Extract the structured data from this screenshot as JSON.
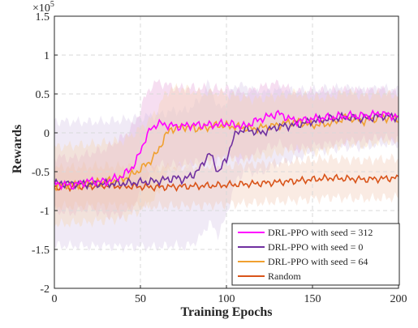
{
  "chart_data": {
    "type": "line",
    "title": "",
    "xlabel": "Training Epochs",
    "ylabel": "Rewards",
    "y_multiplier_label": "×10",
    "y_multiplier_exp": "5",
    "xlim": [
      0,
      200
    ],
    "ylim": [
      -2,
      1.5
    ],
    "xticks": [
      0,
      50,
      100,
      150,
      200
    ],
    "yticks": [
      -2,
      -1.5,
      -1,
      -0.5,
      0,
      0.5,
      1,
      1.5
    ],
    "xtick_labels": [
      "0",
      "50",
      "100",
      "150",
      "200"
    ],
    "ytick_labels": [
      "-2",
      "-1.5",
      "-1",
      "-0.5",
      "0",
      "0.5",
      "1",
      "1.5"
    ],
    "grid": true,
    "legend_position": "bottom-right",
    "series": [
      {
        "name": "DRL-PPO with seed = 312",
        "color": "#ff00ff",
        "band_color": "#e6a0d6",
        "anchors": [
          [
            0,
            -0.65
          ],
          [
            10,
            -0.68
          ],
          [
            20,
            -0.62
          ],
          [
            30,
            -0.63
          ],
          [
            40,
            -0.55
          ],
          [
            47,
            -0.4
          ],
          [
            52,
            -0.12
          ],
          [
            56,
            0.05
          ],
          [
            60,
            0.12
          ],
          [
            66,
            0.1
          ],
          [
            72,
            0.08
          ],
          [
            80,
            0.1
          ],
          [
            90,
            0.1
          ],
          [
            100,
            0.12
          ],
          [
            110,
            0.08
          ],
          [
            120,
            0.18
          ],
          [
            130,
            0.25
          ],
          [
            140,
            0.15
          ],
          [
            150,
            0.18
          ],
          [
            160,
            0.2
          ],
          [
            170,
            0.22
          ],
          [
            180,
            0.22
          ],
          [
            190,
            0.25
          ],
          [
            200,
            0.2
          ]
        ],
        "band": [
          [
            0,
            0.35
          ],
          [
            20,
            0.35
          ],
          [
            40,
            0.5
          ],
          [
            55,
            0.55
          ],
          [
            70,
            0.5
          ],
          [
            100,
            0.45
          ],
          [
            150,
            0.35
          ],
          [
            200,
            0.3
          ]
        ]
      },
      {
        "name": "DRL-PPO with seed = 0",
        "color": "#7030a0",
        "band_color": "#d3c3e6",
        "anchors": [
          [
            0,
            -0.65
          ],
          [
            20,
            -0.66
          ],
          [
            40,
            -0.65
          ],
          [
            60,
            -0.62
          ],
          [
            70,
            -0.58
          ],
          [
            75,
            -0.6
          ],
          [
            80,
            -0.55
          ],
          [
            85,
            -0.45
          ],
          [
            90,
            -0.25
          ],
          [
            95,
            -0.5
          ],
          [
            100,
            -0.35
          ],
          [
            103,
            -0.12
          ],
          [
            106,
            0.0
          ],
          [
            110,
            0.05
          ],
          [
            120,
            0.0
          ],
          [
            130,
            0.08
          ],
          [
            140,
            0.1
          ],
          [
            150,
            0.15
          ],
          [
            160,
            0.18
          ],
          [
            170,
            0.2
          ],
          [
            180,
            0.18
          ],
          [
            190,
            0.22
          ],
          [
            200,
            0.2
          ]
        ],
        "band": [
          [
            0,
            0.8
          ],
          [
            30,
            0.8
          ],
          [
            60,
            0.85
          ],
          [
            90,
            0.9
          ],
          [
            110,
            0.55
          ],
          [
            150,
            0.4
          ],
          [
            200,
            0.35
          ]
        ]
      },
      {
        "name": "DRL-PPO with seed = 64",
        "color": "#f0a030",
        "band_color": "#f6d4a8",
        "anchors": [
          [
            0,
            -0.68
          ],
          [
            20,
            -0.65
          ],
          [
            40,
            -0.6
          ],
          [
            48,
            -0.5
          ],
          [
            55,
            -0.38
          ],
          [
            60,
            -0.25
          ],
          [
            64,
            -0.05
          ],
          [
            68,
            0.05
          ],
          [
            75,
            0.08
          ],
          [
            85,
            0.05
          ],
          [
            95,
            0.1
          ],
          [
            105,
            0.08
          ],
          [
            115,
            0.05
          ],
          [
            130,
            0.1
          ],
          [
            140,
            0.15
          ],
          [
            150,
            0.1
          ],
          [
            160,
            0.12
          ],
          [
            170,
            0.2
          ],
          [
            180,
            0.15
          ],
          [
            190,
            0.2
          ],
          [
            200,
            0.18
          ]
        ],
        "band": [
          [
            0,
            0.5
          ],
          [
            40,
            0.5
          ],
          [
            60,
            0.55
          ],
          [
            100,
            0.4
          ],
          [
            150,
            0.35
          ],
          [
            200,
            0.3
          ]
        ]
      },
      {
        "name": "Random",
        "color": "#d9541a",
        "band_color": "#f2c6ae",
        "anchors": [
          [
            0,
            -0.7
          ],
          [
            30,
            -0.68
          ],
          [
            60,
            -0.7
          ],
          [
            90,
            -0.68
          ],
          [
            120,
            -0.65
          ],
          [
            140,
            -0.62
          ],
          [
            160,
            -0.58
          ],
          [
            180,
            -0.6
          ],
          [
            200,
            -0.58
          ]
        ],
        "band": [
          [
            0,
            0.25
          ],
          [
            100,
            0.25
          ],
          [
            200,
            0.25
          ]
        ]
      }
    ]
  }
}
